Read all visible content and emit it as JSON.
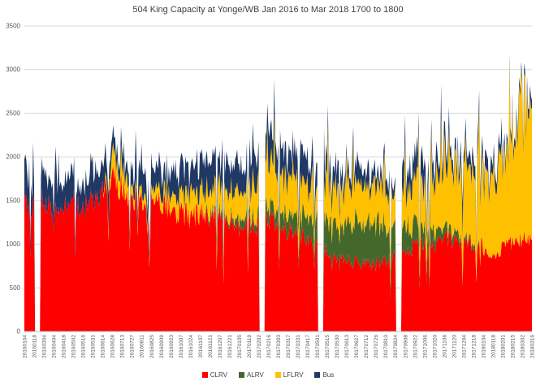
{
  "chart_data": {
    "type": "area",
    "stacked": true,
    "title": "504 King Capacity at Yonge/WB Jan 2016 to Mar 2018  1700 to 1800",
    "xlabel": "",
    "ylabel": "",
    "ylim": [
      0,
      3500
    ],
    "ytick_interval": 500,
    "grid": true,
    "legend_position": "bottom",
    "categories": [
      "20160104",
      "20160118",
      "20160304",
      "20160404",
      "20160418",
      "20160502",
      "20160516",
      "20160531",
      "20160614",
      "20160628",
      "20160713",
      "20160727",
      "20160811",
      "20160825",
      "20160909",
      "20160923",
      "20161007",
      "20161024",
      "20161107",
      "20161121",
      "20161207",
      "20161221",
      "20170105",
      "20170119",
      "20170202",
      "20170216",
      "20170303",
      "20170317",
      "20170331",
      "20170417",
      "20170501",
      "20170515",
      "20170530",
      "20170613",
      "20170627",
      "20170712",
      "20170726",
      "20170810",
      "20170824",
      "20170908",
      "20170922",
      "20171006",
      "20171020",
      "20171106",
      "20171120",
      "20171204",
      "20171218",
      "20180104",
      "20180118",
      "20180201",
      "20180215",
      "20180302",
      "20180316"
    ],
    "series": [
      {
        "name": "CLRV",
        "color": "#FF0000",
        "values": [
          1450,
          1450,
          1500,
          1350,
          1450,
          1500,
          1400,
          1500,
          1550,
          1700,
          1650,
          1550,
          1500,
          1450,
          1450,
          1400,
          1350,
          1300,
          1350,
          1300,
          1300,
          1250,
          1200,
          1250,
          1200,
          1300,
          1200,
          1150,
          1100,
          1050,
          1000,
          900,
          850,
          800,
          800,
          750,
          750,
          800,
          850,
          900,
          950,
          1000,
          1000,
          1050,
          1050,
          1000,
          1000,
          950,
          900,
          950,
          1000,
          1050,
          1050
        ]
      },
      {
        "name": "ALRV",
        "color": "#44682C",
        "values": [
          0,
          0,
          0,
          0,
          0,
          0,
          0,
          0,
          0,
          0,
          0,
          0,
          0,
          0,
          0,
          0,
          0,
          0,
          0,
          50,
          50,
          50,
          100,
          100,
          100,
          150,
          150,
          200,
          200,
          250,
          300,
          350,
          400,
          400,
          450,
          450,
          450,
          400,
          400,
          300,
          250,
          200,
          150,
          100,
          100,
          50,
          50,
          0,
          0,
          0,
          0,
          0,
          0
        ]
      },
      {
        "name": "LFLRV",
        "color": "#FFC000",
        "values": [
          0,
          0,
          0,
          0,
          0,
          0,
          0,
          0,
          0,
          200,
          250,
          100,
          100,
          100,
          150,
          150,
          200,
          250,
          250,
          250,
          300,
          300,
          300,
          350,
          350,
          500,
          400,
          400,
          350,
          350,
          350,
          400,
          400,
          450,
          450,
          400,
          400,
          400,
          350,
          400,
          500,
          500,
          600,
          700,
          700,
          800,
          800,
          900,
          900,
          1000,
          1200,
          1400,
          1500
        ]
      },
      {
        "name": "Bus",
        "color": "#1F3864",
        "values": [
          350,
          300,
          300,
          350,
          300,
          300,
          250,
          300,
          300,
          150,
          150,
          200,
          250,
          250,
          250,
          300,
          300,
          300,
          300,
          300,
          300,
          300,
          300,
          300,
          300,
          350,
          300,
          300,
          300,
          250,
          250,
          200,
          200,
          150,
          150,
          150,
          150,
          150,
          150,
          200,
          250,
          250,
          200,
          200,
          150,
          150,
          150,
          150,
          150,
          100,
          100,
          100,
          100
        ]
      }
    ],
    "gaps_after": [
      "20160118",
      "20170202",
      "20170501",
      "20170824"
    ]
  },
  "y_axis": {
    "tick_labels": [
      "0",
      "500",
      "1000",
      "1500",
      "2000",
      "2500",
      "3000",
      "3500"
    ]
  },
  "legend": {
    "items": [
      {
        "label": "CLRV",
        "color": "#FF0000"
      },
      {
        "label": "ALRV",
        "color": "#44682C"
      },
      {
        "label": "LFLRV",
        "color": "#FFC000"
      },
      {
        "label": "Bus",
        "color": "#1F3864"
      }
    ]
  }
}
